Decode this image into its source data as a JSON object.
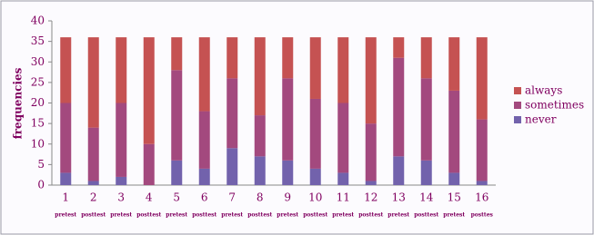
{
  "chart_data": {
    "type": "stacked_bar",
    "y_label": "frequencies",
    "categories": [
      "1",
      "2",
      "3",
      "4",
      "5",
      "6",
      "7",
      "8",
      "9",
      "10",
      "11",
      "12",
      "13",
      "14",
      "15",
      "16"
    ],
    "sublabels": [
      "pretest",
      "posttest",
      "pretest",
      "posttest",
      "pretest",
      "posttest",
      "pretest",
      "posttest",
      "pretest",
      "posttest",
      "pretest",
      "posttest",
      "pretest",
      "posttest",
      "pretest",
      "posttes"
    ],
    "series": [
      {
        "name": "never",
        "color": "#7262ac",
        "values": [
          3,
          1,
          2,
          0,
          6,
          4,
          9,
          7,
          6,
          4,
          3,
          1,
          7,
          6,
          3,
          1
        ]
      },
      {
        "name": "sometimes",
        "color": "#a3497e",
        "values": [
          17,
          13,
          18,
          10,
          22,
          14,
          17,
          10,
          20,
          17,
          17,
          14,
          24,
          20,
          20,
          15
        ]
      },
      {
        "name": "always",
        "color": "#c55252",
        "values": [
          16,
          22,
          16,
          26,
          8,
          18,
          10,
          19,
          10,
          15,
          16,
          21,
          5,
          10,
          13,
          20
        ]
      }
    ],
    "ylim": [
      0,
      40
    ],
    "yticks": [
      0,
      5,
      10,
      15,
      20,
      25,
      30,
      35,
      40
    ],
    "grid": false
  }
}
